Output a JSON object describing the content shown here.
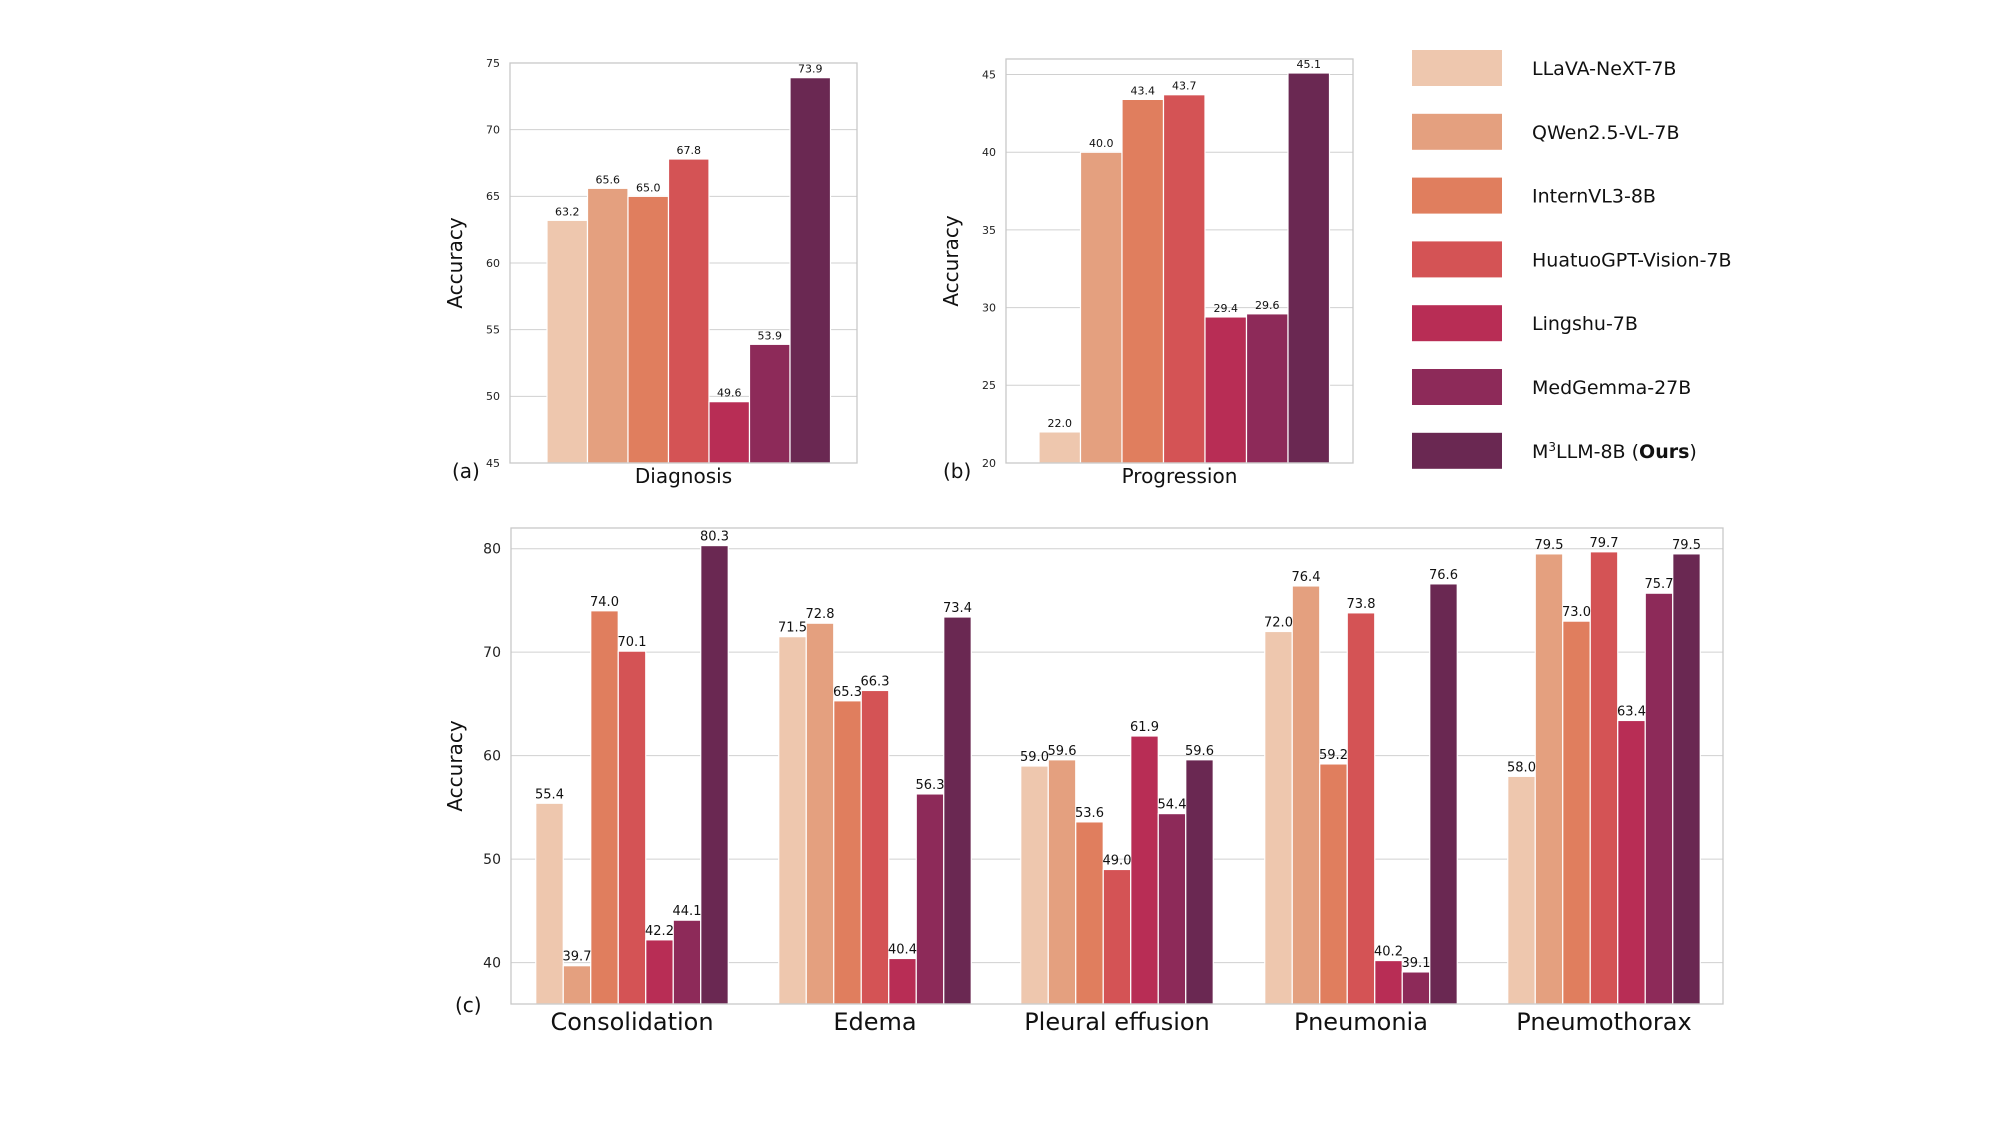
{
  "colors": {
    "LLaVA-NeXT-7B": "#EEC7AE",
    "QWen2.5-VL-7B": "#E4A07F",
    "InternVL3-8B": "#E07E5E",
    "HuatuoGPT-Vision-7B": "#D45355",
    "Lingshu-7B": "#B82D55",
    "MedGemma-27B": "#8D2A59",
    "M3LLM-8B": "#6A2852"
  },
  "legend": [
    {
      "key": "LLaVA-NeXT-7B",
      "label": "LLaVA-NeXT-7B"
    },
    {
      "key": "QWen2.5-VL-7B",
      "label": "QWen2.5-VL-7B"
    },
    {
      "key": "InternVL3-8B",
      "label": "InternVL3-8B"
    },
    {
      "key": "HuatuoGPT-Vision-7B",
      "label": "HuatuoGPT-Vision-7B"
    },
    {
      "key": "Lingshu-7B",
      "label": "Lingshu-7B"
    },
    {
      "key": "MedGemma-27B",
      "label": "MedGemma-27B"
    },
    {
      "key": "M3LLM-8B",
      "label_prefix": "M",
      "label_sup": "3",
      "label_mid": "LLM-8B (",
      "label_bold": "Ours",
      "label_suffix": ")"
    }
  ],
  "chart_data": [
    {
      "id": "a",
      "panel_label": "(a)",
      "type": "bar",
      "xlabel": "Diagnosis",
      "ylabel": "Accuracy",
      "ylim": [
        45,
        75
      ],
      "yticks": [
        45,
        50,
        55,
        60,
        65,
        70,
        75
      ],
      "grid": true,
      "categories": [
        "Diagnosis"
      ],
      "series": [
        {
          "name": "LLaVA-NeXT-7B",
          "values": [
            63.2
          ]
        },
        {
          "name": "QWen2.5-VL-7B",
          "values": [
            65.6
          ]
        },
        {
          "name": "InternVL3-8B",
          "values": [
            65.0
          ]
        },
        {
          "name": "HuatuoGPT-Vision-7B",
          "values": [
            67.8
          ]
        },
        {
          "name": "Lingshu-7B",
          "values": [
            49.6
          ]
        },
        {
          "name": "MedGemma-27B",
          "values": [
            53.9
          ]
        },
        {
          "name": "M3LLM-8B",
          "values": [
            73.9
          ]
        }
      ]
    },
    {
      "id": "b",
      "panel_label": "(b)",
      "type": "bar",
      "xlabel": "Progression",
      "ylabel": "Accuracy",
      "ylim": [
        20,
        46
      ],
      "yticks": [
        20,
        25,
        30,
        35,
        40,
        45
      ],
      "grid": true,
      "categories": [
        "Progression"
      ],
      "series": [
        {
          "name": "LLaVA-NeXT-7B",
          "values": [
            22.0
          ]
        },
        {
          "name": "QWen2.5-VL-7B",
          "values": [
            40.0
          ]
        },
        {
          "name": "InternVL3-8B",
          "values": [
            43.4
          ]
        },
        {
          "name": "HuatuoGPT-Vision-7B",
          "values": [
            43.7
          ]
        },
        {
          "name": "Lingshu-7B",
          "values": [
            29.4
          ]
        },
        {
          "name": "MedGemma-27B",
          "values": [
            29.6
          ]
        },
        {
          "name": "M3LLM-8B",
          "values": [
            45.1
          ]
        }
      ]
    },
    {
      "id": "c",
      "panel_label": "(c)",
      "type": "bar",
      "xlabel": "",
      "ylabel": "Accuracy",
      "ylim": [
        36,
        82
      ],
      "yticks": [
        40,
        50,
        60,
        70,
        80
      ],
      "grid": true,
      "categories": [
        "Consolidation",
        "Edema",
        "Pleural effusion",
        "Pneumonia",
        "Pneumothorax"
      ],
      "series": [
        {
          "name": "LLaVA-NeXT-7B",
          "values": [
            55.4,
            71.5,
            59.0,
            72.0,
            58.0
          ]
        },
        {
          "name": "QWen2.5-VL-7B",
          "values": [
            39.7,
            72.8,
            59.6,
            76.4,
            79.5
          ]
        },
        {
          "name": "InternVL3-8B",
          "values": [
            74.0,
            65.3,
            53.6,
            59.2,
            73.0
          ]
        },
        {
          "name": "HuatuoGPT-Vision-7B",
          "values": [
            70.1,
            66.3,
            49.0,
            73.8,
            79.7
          ]
        },
        {
          "name": "Lingshu-7B",
          "values": [
            42.2,
            40.4,
            61.9,
            40.2,
            63.4
          ]
        },
        {
          "name": "MedGemma-27B",
          "values": [
            44.1,
            56.3,
            54.4,
            39.1,
            75.7
          ]
        },
        {
          "name": "M3LLM-8B",
          "values": [
            80.3,
            73.4,
            59.6,
            76.6,
            79.5
          ]
        }
      ]
    }
  ]
}
